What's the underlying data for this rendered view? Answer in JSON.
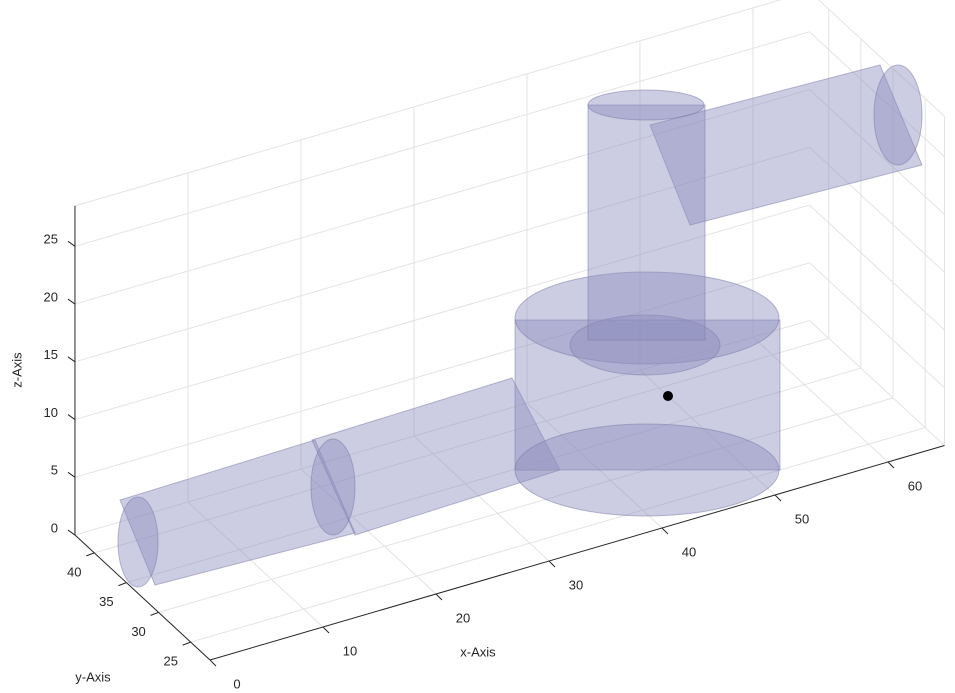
{
  "chart_data": {
    "type": "3d",
    "xlabel": "x-Axis",
    "ylabel": "y-Axis",
    "zlabel": "z-Axis",
    "xlim": [
      0,
      65
    ],
    "ylim": [
      22,
      43
    ],
    "zlim": [
      0,
      28.5
    ],
    "xticks": [
      0,
      10,
      20,
      30,
      40,
      50,
      60
    ],
    "yticks": [
      25,
      30,
      35,
      40
    ],
    "zticks": [
      0,
      5,
      10,
      15,
      20,
      25
    ],
    "grid": true
  }
}
